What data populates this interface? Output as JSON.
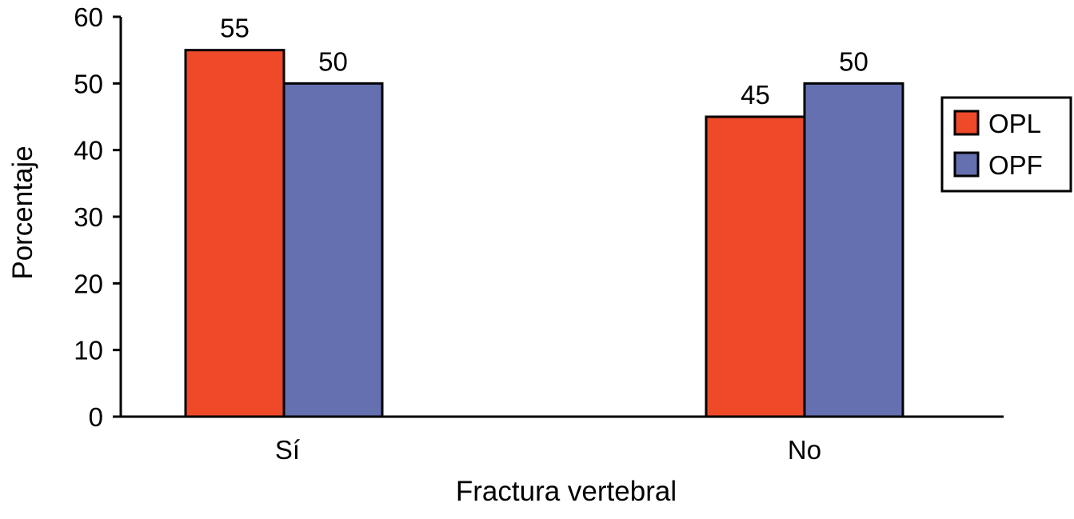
{
  "chart_data": {
    "type": "bar",
    "title": "",
    "xlabel": "Fractura vertebral",
    "ylabel": "Porcentaje",
    "categories": [
      "Sí",
      "No"
    ],
    "series": [
      {
        "name": "OPL",
        "values": [
          55,
          45
        ],
        "data_labels": [
          "55",
          "45"
        ],
        "color": "#ee4a2a"
      },
      {
        "name": "OPF",
        "values": [
          50,
          50
        ],
        "data_labels": [
          "50",
          "50"
        ],
        "color": "#6570b1"
      }
    ],
    "ylim": [
      0,
      60
    ],
    "yticks": [
      "0",
      "10",
      "20",
      "30",
      "40",
      "50",
      "60"
    ],
    "grid": false,
    "legend_position": "right"
  }
}
